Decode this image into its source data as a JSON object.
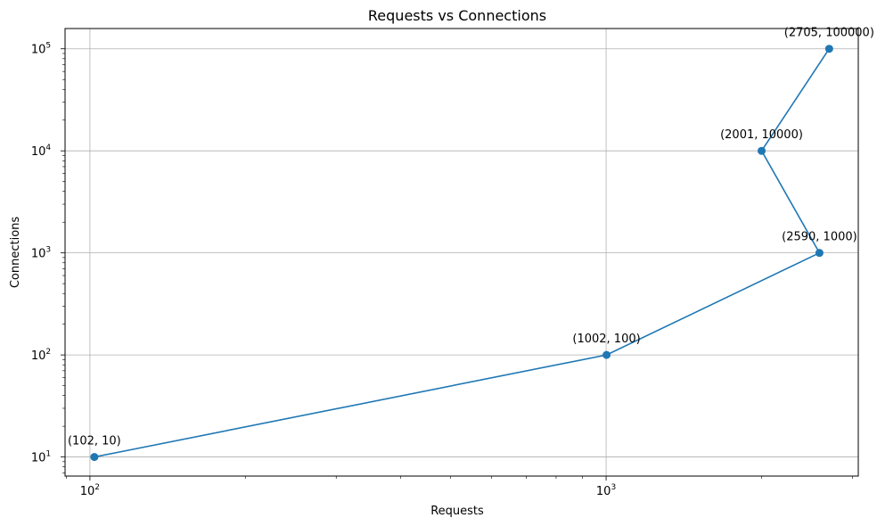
{
  "chart_data": {
    "type": "line",
    "title": "Requests vs Connections",
    "xlabel": "Requests",
    "ylabel": "Connections",
    "xscale": "log",
    "yscale": "log",
    "xlim": [
      89.5,
      3080
    ],
    "ylim": [
      6.5,
      158000
    ],
    "grid": true,
    "series": [
      {
        "marker": "circle",
        "color": "#1f77b4",
        "points": [
          {
            "x": 102,
            "y": 10,
            "label": "(102, 10)"
          },
          {
            "x": 1002,
            "y": 100,
            "label": "(1002, 100)"
          },
          {
            "x": 2590,
            "y": 1000,
            "label": "(2590, 1000)"
          },
          {
            "x": 2001,
            "y": 10000,
            "label": "(2001, 10000)"
          },
          {
            "x": 2705,
            "y": 100000,
            "label": "(2705, 100000)"
          }
        ]
      }
    ],
    "x_ticks": [
      {
        "value": 100,
        "base": "10",
        "exp": "2"
      },
      {
        "value": 1000,
        "base": "10",
        "exp": "3"
      }
    ],
    "y_ticks": [
      {
        "value": 10,
        "base": "10",
        "exp": "1"
      },
      {
        "value": 100,
        "base": "10",
        "exp": "2"
      },
      {
        "value": 1000,
        "base": "10",
        "exp": "3"
      },
      {
        "value": 10000,
        "base": "10",
        "exp": "4"
      },
      {
        "value": 100000,
        "base": "10",
        "exp": "5"
      }
    ]
  }
}
